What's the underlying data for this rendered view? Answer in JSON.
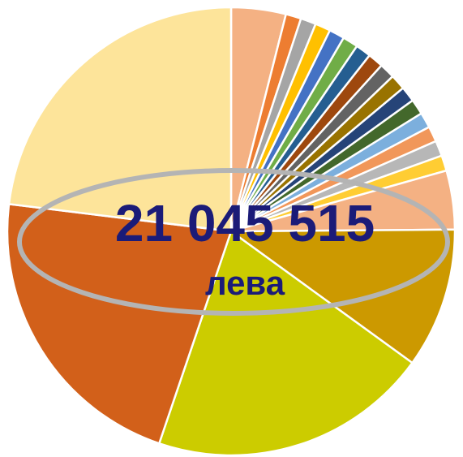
{
  "chart_data": {
    "type": "pie",
    "values": [
      3.9,
      1.1,
      1.1,
      1.1,
      1.1,
      1.1,
      1.1,
      1.1,
      1.1,
      1.1,
      1.1,
      1.1,
      1.1,
      1.1,
      1.1,
      1.1,
      4.2,
      10,
      20,
      21.5,
      22.8
    ],
    "colors": [
      "#f4b183",
      "#ed7d31",
      "#a5a5a5",
      "#ffc000",
      "#4472c4",
      "#70ad47",
      "#255e91",
      "#9e480e",
      "#636363",
      "#997300",
      "#264478",
      "#43682b",
      "#7cafdd",
      "#f1975a",
      "#b7b7b7",
      "#ffcd33",
      "#f4b183",
      "#cc9900",
      "#cccc00",
      "#d2601a",
      "#fde49a"
    ],
    "annotations": [
      "21 045 515",
      "лева"
    ]
  }
}
